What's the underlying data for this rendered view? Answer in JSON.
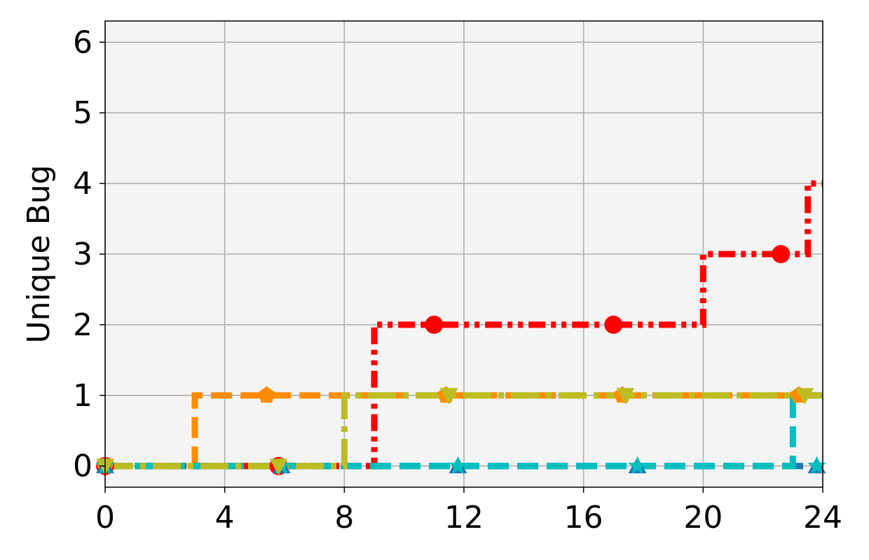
{
  "chart_data": {
    "type": "line",
    "xlabel": "",
    "ylabel": "Unique Bug",
    "xlim": [
      0,
      24
    ],
    "ylim": [
      -0.3,
      6.3
    ],
    "xticks": [
      0,
      4,
      8,
      12,
      16,
      20,
      24
    ],
    "yticks": [
      0,
      1,
      2,
      3,
      4,
      5,
      6
    ],
    "grid": true,
    "background": "#f4f4f4",
    "step": "post",
    "series": [
      {
        "color": "#ff0000",
        "marker": "circle",
        "dash": "dashdotdot",
        "x": [
          0,
          8.8,
          9.0,
          20.0,
          23.5,
          24
        ],
        "y": [
          0,
          0,
          2,
          3,
          4,
          4
        ],
        "markers_x": [
          0,
          5.8,
          11.0,
          17.0,
          22.6
        ],
        "markers_y": [
          0,
          0,
          2,
          2,
          3
        ]
      },
      {
        "color": "#ff8c00",
        "marker": "pentagon",
        "dash": "dashed",
        "x": [
          0,
          3.0,
          24
        ],
        "y": [
          0,
          1,
          1
        ],
        "markers_x": [
          0,
          5.4,
          11.4,
          17.3,
          23.2
        ],
        "markers_y": [
          0,
          1,
          1,
          1,
          1
        ]
      },
      {
        "color": "#1f77b4",
        "marker": "triangle-up",
        "dash": "dashed",
        "x": [
          0,
          24
        ],
        "y": [
          0,
          0
        ],
        "markers_x": [
          0,
          5.9,
          11.8,
          17.8,
          23.8
        ],
        "markers_y": [
          0,
          0,
          0,
          0,
          0
        ]
      },
      {
        "color": "#00bfbf",
        "marker": "star",
        "dash": "dashed",
        "x": [
          0,
          23.0,
          24
        ],
        "y": [
          0,
          1,
          1
        ],
        "markers_x": [
          0,
          5.9,
          11.8,
          17.8,
          23.8
        ],
        "markers_y": [
          0,
          0,
          0,
          0,
          0
        ]
      },
      {
        "color": "#bcbd22",
        "marker": "triangle-down",
        "dash": "longdashdot",
        "x": [
          0,
          8.0,
          24
        ],
        "y": [
          0,
          1,
          1
        ],
        "markers_x": [
          0,
          5.8,
          11.5,
          17.4,
          23.4
        ],
        "markers_y": [
          0,
          0,
          1,
          1,
          1
        ]
      }
    ]
  }
}
